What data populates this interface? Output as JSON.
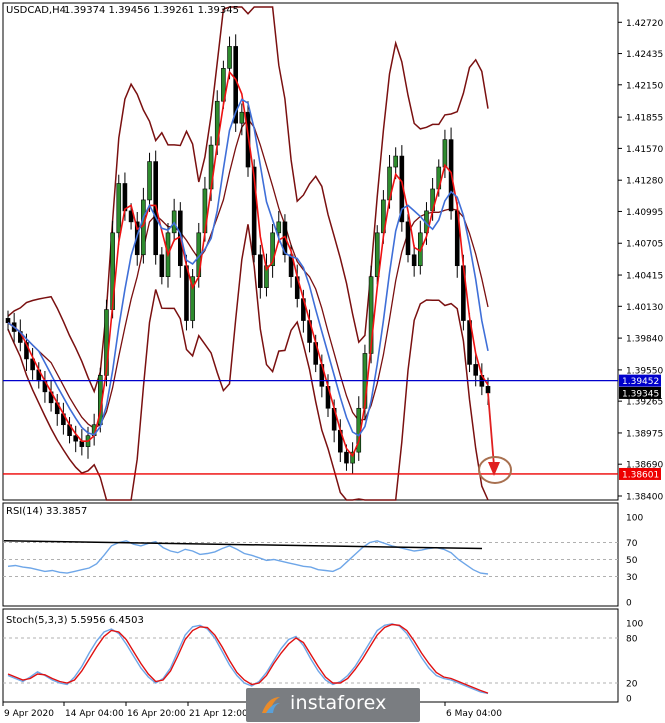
{
  "header": {
    "symbol": "USDCAD,H4",
    "ohlc": "1.39374 1.39456 1.39261 1.39345"
  },
  "chart_data": [
    {
      "type": "candlestick",
      "panel": "main",
      "title": "USDCAD,H4",
      "y_ticks": [
        "1.42720",
        "1.42435",
        "1.42150",
        "1.41855",
        "1.41570",
        "1.41280",
        "1.40995",
        "1.40705",
        "1.40415",
        "1.40130",
        "1.39840",
        "1.39550",
        "1.39265",
        "1.38975",
        "1.38690",
        "1.38400"
      ],
      "ylim": [
        1.384,
        1.4275
      ],
      "current_price_label": "1.39345",
      "horizontal_lines": [
        {
          "label": "1.39452",
          "value": 1.39452,
          "color": "#0000cc"
        },
        {
          "label": "1.38601",
          "value": 1.38601,
          "color": "#ee0000"
        }
      ],
      "annotation": {
        "type": "arrow-and-circle",
        "target": 1.38601,
        "color": "#e02020",
        "circle_color": "#a87050"
      },
      "indicators": [
        "Bollinger Bands",
        "Moving Average (red)",
        "Moving Average (blue)"
      ],
      "x_ticks": [
        "9 Apr 2020",
        "14 Apr 04:00",
        "16 Apr 20:00",
        "21 Apr 12:00",
        "6 May 04:00"
      ],
      "close_series": [
        1.3998,
        1.399,
        1.398,
        1.3965,
        1.3955,
        1.3945,
        1.3935,
        1.3925,
        1.3915,
        1.3905,
        1.3895,
        1.389,
        1.3885,
        1.3895,
        1.3905,
        1.395,
        1.401,
        1.408,
        1.4125,
        1.41,
        1.409,
        1.406,
        1.411,
        1.4145,
        1.406,
        1.404,
        1.408,
        1.41,
        1.405,
        1.4,
        1.404,
        1.408,
        1.412,
        1.416,
        1.42,
        1.423,
        1.425,
        1.418,
        1.419,
        1.414,
        1.406,
        1.403,
        1.405,
        1.408,
        1.409,
        1.406,
        1.404,
        1.402,
        1.4,
        1.398,
        1.396,
        1.394,
        1.392,
        1.39,
        1.388,
        1.387,
        1.388,
        1.392,
        1.397,
        1.404,
        1.408,
        1.411,
        1.414,
        1.415,
        1.409,
        1.406,
        1.405,
        1.408,
        1.41,
        1.412,
        1.414,
        1.4165,
        1.41,
        1.405,
        1.4,
        1.396,
        1.395,
        1.394,
        1.3934
      ]
    },
    {
      "type": "line",
      "panel": "RSI",
      "title": "RSI(14) 33.3857",
      "ylim": [
        0,
        100
      ],
      "y_ticks": [
        "100",
        "70",
        "50",
        "30",
        "0"
      ],
      "series": [
        {
          "values": [
            42,
            43,
            41,
            40,
            38,
            36,
            37,
            35,
            34,
            36,
            38,
            40,
            45,
            55,
            66,
            70,
            72,
            68,
            66,
            69,
            71,
            64,
            60,
            58,
            62,
            60,
            56,
            57,
            59,
            63,
            66,
            62,
            57,
            55,
            52,
            49,
            50,
            48,
            46,
            44,
            42,
            41,
            38,
            37,
            36,
            40,
            48,
            56,
            64,
            70,
            72,
            69,
            66,
            64,
            62,
            60,
            61,
            63,
            64,
            62,
            58,
            50,
            44,
            38,
            34,
            33
          ]
        }
      ]
    },
    {
      "type": "line",
      "panel": "Stochastic",
      "title": "Stoch(5,3,3) 5.5956 6.4503",
      "ylim": [
        0,
        100
      ],
      "y_ticks": [
        "100",
        "80",
        "20",
        "0"
      ],
      "series": [
        {
          "values": [
            30,
            26,
            22,
            28,
            35,
            30,
            24,
            20,
            18,
            28,
            42,
            60,
            76,
            88,
            92,
            86,
            72,
            56,
            40,
            28,
            20,
            26,
            40,
            62,
            84,
            95,
            97,
            92,
            80,
            62,
            44,
            30,
            20,
            16,
            22,
            34,
            50,
            66,
            78,
            82,
            70,
            52,
            36,
            24,
            18,
            22,
            30,
            42,
            58,
            74,
            90,
            97,
            99,
            96,
            86,
            70,
            54,
            40,
            30,
            26,
            24,
            20,
            16,
            12,
            8,
            6
          ]
        },
        {
          "values": [
            32,
            28,
            24,
            26,
            32,
            31,
            26,
            22,
            20,
            24,
            36,
            52,
            68,
            82,
            90,
            88,
            78,
            62,
            46,
            32,
            22,
            24,
            36,
            56,
            78,
            90,
            95,
            94,
            84,
            68,
            50,
            34,
            24,
            18,
            20,
            30,
            46,
            60,
            72,
            80,
            74,
            58,
            42,
            28,
            20,
            20,
            26,
            38,
            52,
            68,
            84,
            94,
            98,
            97,
            90,
            76,
            60,
            46,
            34,
            28,
            26,
            22,
            18,
            14,
            10,
            6.5
          ]
        }
      ]
    }
  ],
  "watermark": {
    "text": "instaforex",
    "bg": "#7a7d81",
    "logo_colors": [
      "#e98b2a",
      "#5aa0d8"
    ]
  },
  "colors": {
    "candle_up": "#2e8b2e",
    "candle_down": "#000000",
    "ma_red": "#ee1111",
    "ma_blue": "#3f6fd8",
    "bands": "#7a1010",
    "indicator_line": "#6ea6e8",
    "stoch_signal": "#e01010",
    "current_label_bg": "#000000",
    "blue_label_bg": "#0000cc",
    "red_label_bg": "#ee0000"
  }
}
